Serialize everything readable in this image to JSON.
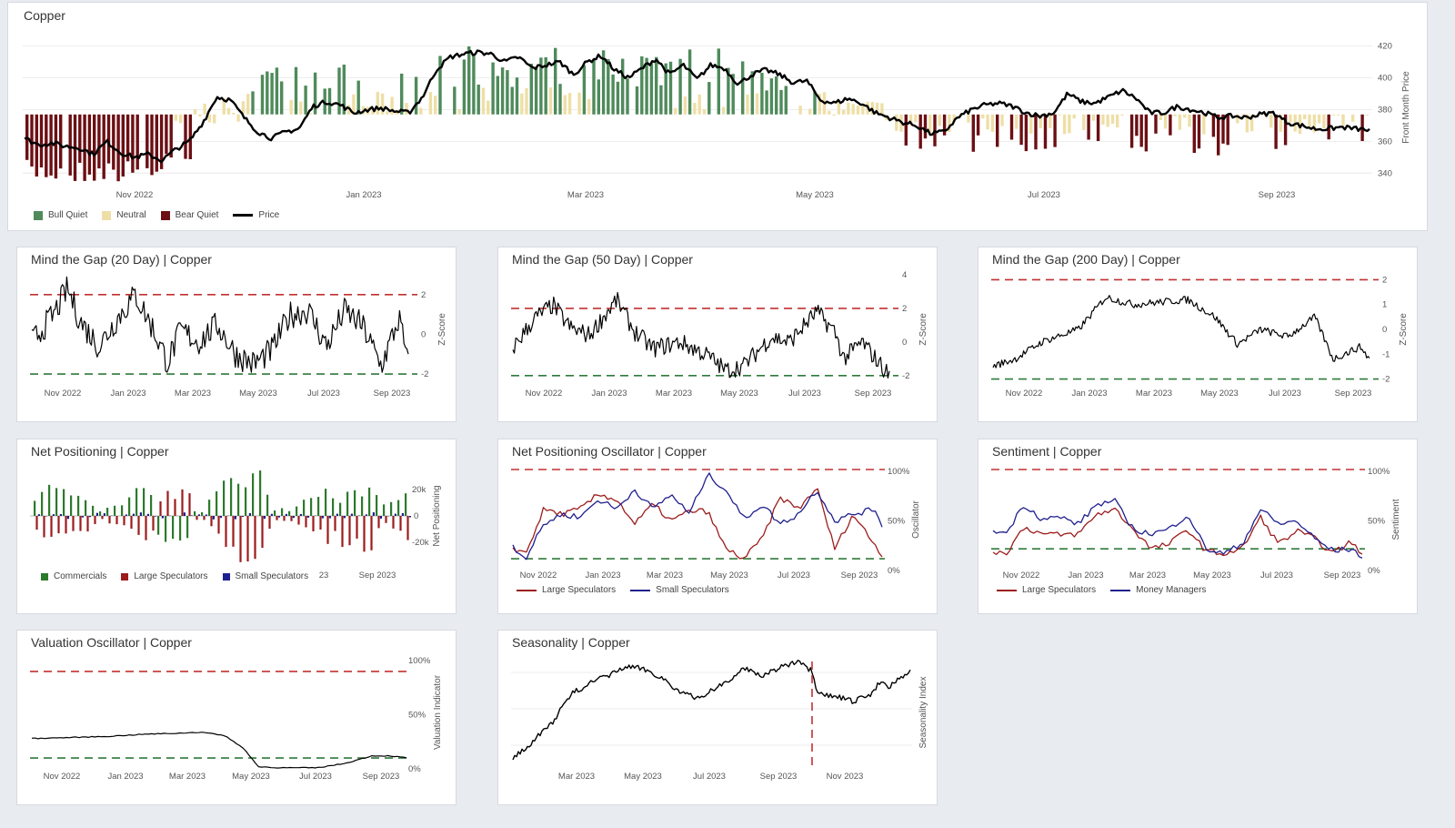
{
  "main": {
    "title": "Copper",
    "y_axis_label": "Front Month Price",
    "x_ticks": [
      "Nov 2022",
      "Jan 2023",
      "Mar 2023",
      "May 2023",
      "Jul 2023",
      "Sep 2023"
    ],
    "legend": {
      "bull": "Bull Quiet",
      "neutral": "Neutral",
      "bear": "Bear Quiet",
      "price": "Price"
    }
  },
  "colors": {
    "bull": "#4f8a5b",
    "neutral": "#eedfa7",
    "bear": "#6b0f14",
    "price": "#000000",
    "red_line": "#c23030",
    "green_line": "#2f7a3a",
    "navy": "#1f1f8f",
    "maroon": "#9c1c1c"
  },
  "gap20": {
    "title": "Mind the Gap (20 Day) | Copper",
    "y_axis_label": "Z-Score",
    "x_ticks": [
      "Nov 2022",
      "Jan 2023",
      "Mar 2023",
      "May 2023",
      "Jul 2023",
      "Sep 2023"
    ]
  },
  "gap50": {
    "title": "Mind the Gap (50 Day) | Copper",
    "y_axis_label": "Z-Score",
    "x_ticks": [
      "Nov 2022",
      "Jan 2023",
      "Mar 2023",
      "May 2023",
      "Jul 2023",
      "Sep 2023"
    ]
  },
  "gap200": {
    "title": "Mind the Gap (200 Day) | Copper",
    "y_axis_label": "Z-Score",
    "x_ticks": [
      "Nov 2022",
      "Jan 2023",
      "Mar 2023",
      "May 2023",
      "Jul 2023",
      "Sep 2023"
    ]
  },
  "netpos": {
    "title": "Net Positioning | Copper",
    "y_axis_label": "Net Positioning",
    "x_tick_partial": "23",
    "x_tick_last": "Sep 2023",
    "legend": {
      "commercials": "Commercials",
      "large": "Large Speculators",
      "small": "Small Speculators"
    }
  },
  "npo": {
    "title": "Net Positioning Oscillator | Copper",
    "y_axis_label": "Oscillator",
    "x_ticks": [
      "Nov 2022",
      "Jan 2023",
      "Mar 2023",
      "May 2023",
      "Jul 2023",
      "Sep 2023"
    ],
    "legend": {
      "large": "Large Speculators",
      "small": "Small Speculators"
    }
  },
  "sent": {
    "title": "Sentiment | Copper",
    "y_axis_label": "Sentiment",
    "x_ticks": [
      "Nov 2022",
      "Jan 2023",
      "Mar 2023",
      "May 2023",
      "Jul 2023",
      "Sep 2023"
    ],
    "legend": {
      "large": "Large Speculators",
      "mm": "Money Managers"
    }
  },
  "val": {
    "title": "Valuation Oscillator | Copper",
    "y_axis_label": "Valuation Indicator",
    "x_ticks": [
      "Nov 2022",
      "Jan 2023",
      "Mar 2023",
      "May 2023",
      "Jul 2023",
      "Sep 2023"
    ]
  },
  "season": {
    "title": "Seasonality | Copper",
    "y_axis_label": "Seasonality Index",
    "x_ticks": [
      "Mar 2023",
      "May 2023",
      "Jul 2023",
      "Sep 2023",
      "Nov 2023"
    ]
  },
  "chart_data": [
    {
      "id": "main",
      "type": "bar+line",
      "title": "Copper",
      "ylabel": "Front Month Price",
      "ylim": [
        330,
        430
      ],
      "yticks": [
        340,
        360,
        380,
        400,
        420
      ],
      "price": [
        [
          0,
          362
        ],
        [
          3,
          358
        ],
        [
          6,
          359
        ],
        [
          9,
          357
        ],
        [
          12,
          356
        ],
        [
          15,
          352
        ],
        [
          18,
          360
        ],
        [
          21,
          353
        ],
        [
          24,
          350
        ],
        [
          27,
          352
        ],
        [
          30,
          348
        ],
        [
          33,
          355
        ],
        [
          36,
          360
        ],
        [
          39,
          372
        ],
        [
          42,
          388
        ],
        [
          45,
          386
        ],
        [
          48,
          375
        ],
        [
          51,
          366
        ],
        [
          54,
          362
        ],
        [
          57,
          366
        ],
        [
          60,
          368
        ],
        [
          63,
          382
        ],
        [
          66,
          385
        ],
        [
          69,
          383
        ],
        [
          72,
          378
        ],
        [
          75,
          380
        ],
        [
          78,
          381
        ],
        [
          81,
          379
        ],
        [
          84,
          378
        ],
        [
          87,
          388
        ],
        [
          90,
          405
        ],
        [
          93,
          413
        ],
        [
          96,
          415
        ],
        [
          99,
          416
        ],
        [
          102,
          415
        ],
        [
          105,
          410
        ],
        [
          108,
          413
        ],
        [
          111,
          406
        ],
        [
          114,
          408
        ],
        [
          117,
          410
        ],
        [
          120,
          402
        ],
        [
          123,
          410
        ],
        [
          126,
          414
        ],
        [
          129,
          405
        ],
        [
          132,
          400
        ],
        [
          135,
          406
        ],
        [
          138,
          412
        ],
        [
          141,
          402
        ],
        [
          144,
          408
        ],
        [
          147,
          399
        ],
        [
          150,
          408
        ],
        [
          153,
          406
        ],
        [
          156,
          396
        ],
        [
          159,
          402
        ],
        [
          162,
          405
        ],
        [
          165,
          402
        ],
        [
          168,
          397
        ],
        [
          171,
          398
        ],
        [
          174,
          386
        ],
        [
          177,
          384
        ],
        [
          180,
          387
        ],
        [
          183,
          384
        ],
        [
          186,
          378
        ],
        [
          189,
          375
        ],
        [
          192,
          372
        ],
        [
          195,
          370
        ],
        [
          198,
          365
        ],
        [
          201,
          366
        ],
        [
          204,
          375
        ],
        [
          207,
          380
        ],
        [
          210,
          383
        ],
        [
          213,
          384
        ],
        [
          216,
          382
        ],
        [
          219,
          378
        ],
        [
          222,
          376
        ],
        [
          225,
          378
        ],
        [
          228,
          390
        ],
        [
          231,
          385
        ],
        [
          234,
          384
        ],
        [
          237,
          388
        ],
        [
          240,
          392
        ],
        [
          243,
          387
        ],
        [
          246,
          378
        ],
        [
          249,
          378
        ],
        [
          252,
          382
        ],
        [
          255,
          380
        ],
        [
          258,
          378
        ],
        [
          261,
          375
        ],
        [
          264,
          376
        ],
        [
          267,
          375
        ],
        [
          270,
          377
        ],
        [
          273,
          378
        ],
        [
          276,
          372
        ],
        [
          279,
          370
        ],
        [
          282,
          368
        ],
        [
          285,
          368
        ],
        [
          288,
          369
        ],
        [
          291,
          368
        ],
        [
          294,
          367
        ]
      ],
      "regime_pattern": "bear quiet Oct-Nov 2022, neutral Dec 2022, bull quiet Dec 2022-Apr 2023, neutral/bear mix May-Sep 2023"
    },
    {
      "id": "gap20",
      "type": "line",
      "ylabel": "Z-Score",
      "ylim": [
        -2.5,
        2.5
      ],
      "upper": 2,
      "lower": -2
    },
    {
      "id": "gap50",
      "type": "line",
      "ylabel": "Z-Score",
      "ylim": [
        -2.5,
        4
      ],
      "upper": 2,
      "lower": -2
    },
    {
      "id": "gap200",
      "type": "line",
      "ylabel": "Z-Score",
      "ylim": [
        -2,
        2
      ],
      "upper": 2,
      "lower": -2
    },
    {
      "id": "netpos",
      "type": "bar",
      "ylabel": "Net Positioning",
      "ylim": [
        -30000,
        30000
      ],
      "yticks": [
        "20k",
        "0",
        "-20k"
      ],
      "series": [
        "Commercials",
        "Large Speculators",
        "Small Speculators"
      ]
    },
    {
      "id": "npo",
      "type": "line",
      "ylabel": "Oscillator",
      "ylim": [
        0,
        100
      ],
      "yticks": [
        "100%",
        "50%",
        "0%"
      ],
      "series": [
        "Large Speculators",
        "Small Speculators"
      ]
    },
    {
      "id": "sent",
      "type": "line",
      "ylabel": "Sentiment",
      "ylim": [
        0,
        100
      ],
      "yticks": [
        "100%",
        "50%",
        "0%"
      ],
      "series": [
        "Large Speculators",
        "Money Managers"
      ]
    },
    {
      "id": "val",
      "type": "line",
      "ylabel": "Valuation Indicator",
      "ylim": [
        0,
        100
      ],
      "yticks": [
        "100%",
        "50%",
        "0%"
      ]
    },
    {
      "id": "season",
      "type": "line",
      "ylabel": "Seasonality Index"
    }
  ]
}
